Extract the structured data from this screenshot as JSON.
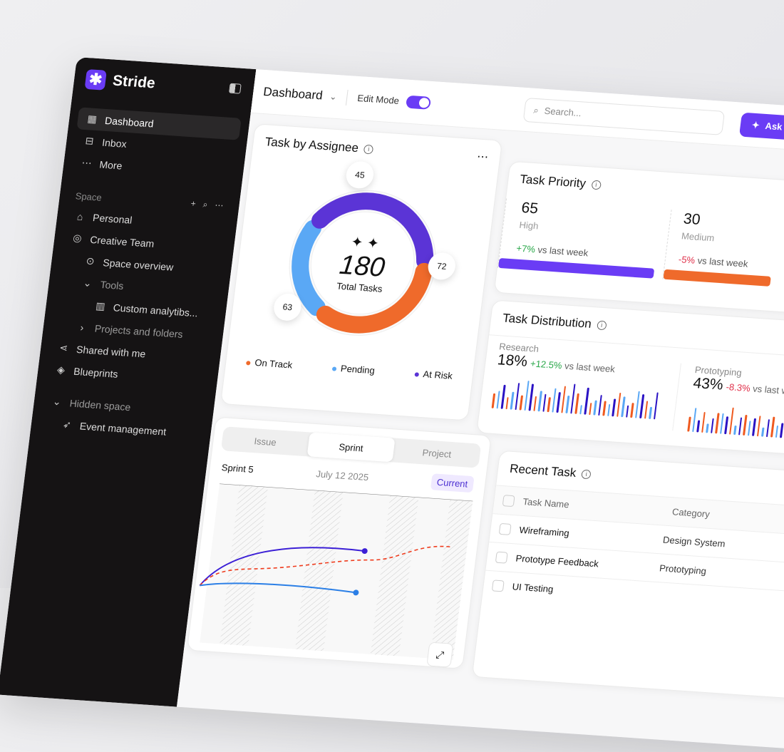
{
  "brand": {
    "name": "Stride"
  },
  "sidebar": {
    "items": [
      {
        "label": "Dashboard",
        "icon": "grid-icon",
        "active": true
      },
      {
        "label": "Inbox",
        "icon": "inbox-icon"
      },
      {
        "label": "More",
        "icon": "more-icon"
      }
    ],
    "space_label": "Space",
    "space_items": [
      {
        "label": "Personal",
        "icon": "home-icon"
      },
      {
        "label": "Creative Team",
        "icon": "palette-icon"
      },
      {
        "label": "Space overview",
        "icon": "download-circle-icon"
      },
      {
        "label": "Tools",
        "icon": "chevron-down-icon"
      },
      {
        "label": "Custom analytibs...",
        "icon": "chart-icon"
      },
      {
        "label": "Projects and folders",
        "icon": "chevron-right-icon"
      },
      {
        "label": "Shared with me",
        "icon": "share-icon"
      },
      {
        "label": "Blueprints",
        "icon": "layers-icon"
      }
    ],
    "hidden_label": "Hidden space",
    "hidden_items": [
      {
        "label": "Event management",
        "icon": "rocket-icon"
      }
    ]
  },
  "header": {
    "title": "Dashboard",
    "edit_mode": "Edit Mode",
    "edit_on": true,
    "search_placeholder": "Search...",
    "ask_label": "Ask AI"
  },
  "assignee": {
    "title": "Task by Assignee",
    "total": "180",
    "total_label": "Total Tasks",
    "segments": [
      {
        "name": "On Track",
        "value": 63,
        "color": "#ef6a2b"
      },
      {
        "name": "Pending",
        "value": 45,
        "color": "#5aa8f5"
      },
      {
        "name": "At Risk",
        "value": 72,
        "color": "#5b34d6"
      }
    ]
  },
  "priority": {
    "title": "Task Priority",
    "items": [
      {
        "value": "65",
        "label": "High",
        "change": "+7%",
        "suffix": "vs last week",
        "up": true,
        "color": "#6a3cf5"
      },
      {
        "value": "30",
        "label": "Medium",
        "change": "-5%",
        "suffix": "vs last week",
        "up": false,
        "color": "#ef6a2b"
      }
    ]
  },
  "distribution": {
    "title": "Task Distribution",
    "items": [
      {
        "label": "Research",
        "value": "18%",
        "change": "+12.5%",
        "suffix": "vs last week",
        "up": true,
        "bars": [
          5,
          6,
          8,
          4,
          6,
          9,
          5,
          10,
          9,
          5,
          7,
          6,
          5,
          8,
          7,
          9,
          6,
          10,
          7,
          3,
          9,
          4,
          5,
          7,
          5,
          4,
          6,
          8,
          7,
          4,
          5,
          9,
          8,
          6,
          4,
          9
        ]
      },
      {
        "label": "Prototyping",
        "value": "43%",
        "change": "-8.3%",
        "suffix": "vs last week",
        "up": false,
        "bars": [
          5,
          8,
          4,
          7,
          3,
          5,
          7,
          7,
          6,
          9,
          3,
          6,
          7,
          5,
          6,
          7,
          3,
          6,
          7,
          4,
          5,
          6
        ]
      }
    ]
  },
  "sprint": {
    "tabs": [
      "Issue",
      "Sprint",
      "Project"
    ],
    "active_tab": "Sprint",
    "name": "Sprint 5",
    "date": "July 12 2025",
    "badge": "Current"
  },
  "recent": {
    "title": "Recent Task",
    "columns": [
      "Task Name",
      "Category"
    ],
    "rows": [
      {
        "task": "Wireframing",
        "category": "Design System"
      },
      {
        "task": "Prototype Feedback",
        "category": "Prototyping"
      },
      {
        "task": "UI Testing",
        "category": ""
      }
    ]
  }
}
